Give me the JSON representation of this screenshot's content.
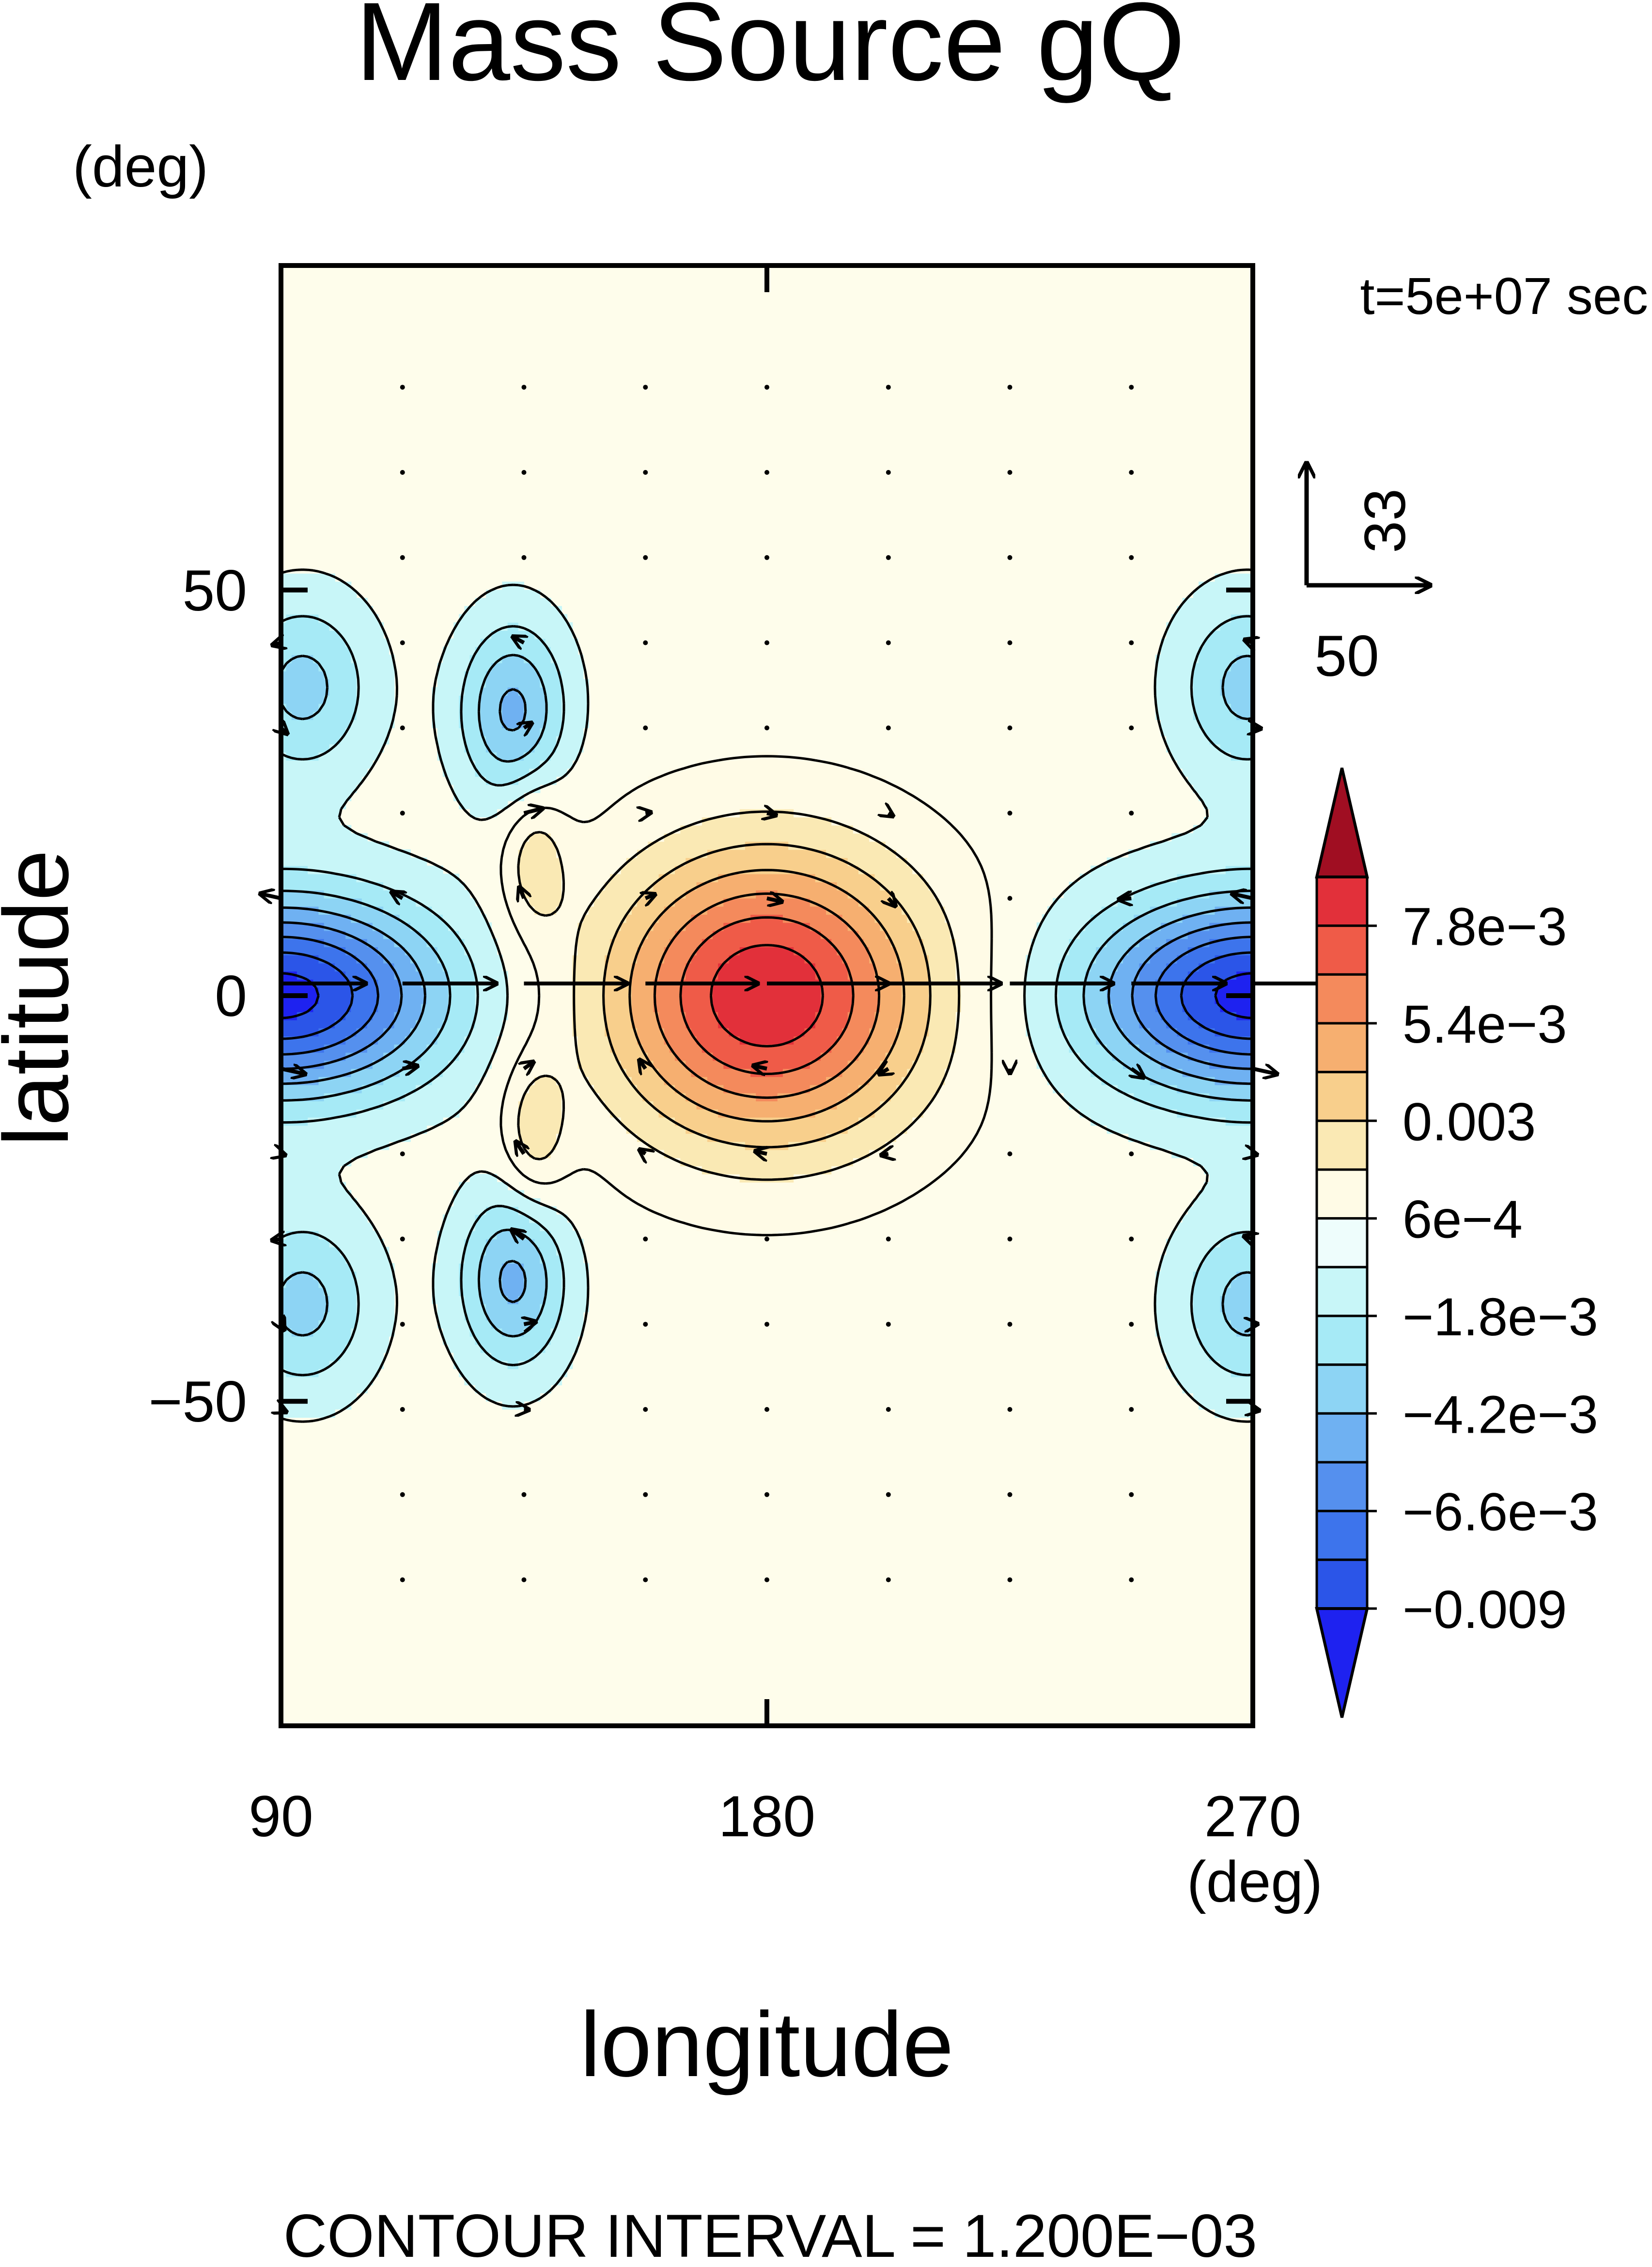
{
  "chart_data": {
    "type": "heatmap",
    "title": "Mass Source gQ",
    "time_label": "t=5e+07 sec",
    "xlabel": "longitude",
    "ylabel": "latitude",
    "x_unit": "(deg)",
    "y_unit": "(deg)",
    "xlim": [
      90,
      270
    ],
    "ylim": [
      -90,
      90
    ],
    "x_ticks": [
      90,
      180,
      270
    ],
    "x_tick_labels": [
      "90",
      "180",
      "270"
    ],
    "y_ticks": [
      50,
      0,
      -50
    ],
    "y_tick_labels": [
      "50",
      "0",
      "−50"
    ],
    "footer": "CONTOUR INTERVAL = 1.200E−03",
    "contour_interval": 0.0012,
    "vector_reference": {
      "u": 50,
      "v": 33,
      "u_label": "50",
      "v_label": "33"
    },
    "colorbar": {
      "levels": [
        -0.009,
        -0.0078,
        -0.0066,
        -0.0054,
        -0.0042,
        -0.003,
        -0.0018,
        -0.0006,
        0.0006,
        0.0018,
        0.003,
        0.0042,
        0.0054,
        0.0066,
        0.0078,
        0.009
      ],
      "colors": [
        "#1e22f0",
        "#2b55e8",
        "#3d74ec",
        "#5590ee",
        "#6fb1f2",
        "#8dd4f4",
        "#a6eaf6",
        "#c8f6f8",
        "#eefdfc",
        "#fffbe6",
        "#fae9b4",
        "#f8cf8c",
        "#f6af70",
        "#f48a5c",
        "#ef5b48",
        "#e2303a",
        "#a00e22"
      ],
      "labeled_levels": [
        0.0078,
        0.0054,
        0.003,
        0.0006,
        -0.0018,
        -0.0042,
        -0.0066,
        -0.009
      ],
      "labels": [
        "7.8e−3",
        "5.4e−3",
        "0.003",
        "6e−4",
        "−1.8e−3",
        "−4.2e−3",
        "−6.6e−3",
        "−0.009"
      ]
    },
    "features": [
      {
        "name": "equatorial-positive-maximum",
        "lon": 180,
        "lat": 0,
        "value": 0.0084
      },
      {
        "name": "western-negative-minimum",
        "lon": 90,
        "lat": 0,
        "value": -0.0084
      },
      {
        "name": "eastern-negative-minimum",
        "lon": 270,
        "lat": 0,
        "value": -0.0084
      },
      {
        "name": "north-cyclone",
        "lon": 133,
        "lat": 35,
        "value": -0.0036
      },
      {
        "name": "south-cyclone",
        "lon": 133,
        "lat": -35,
        "value": -0.0036
      },
      {
        "name": "north-west-negative",
        "lon": 95,
        "lat": 37,
        "value": -0.003
      },
      {
        "name": "south-west-negative",
        "lon": 95,
        "lat": -37,
        "value": -0.003
      },
      {
        "name": "north-east-negative",
        "lon": 268,
        "lat": 37,
        "value": -0.003
      },
      {
        "name": "south-east-negative",
        "lon": 268,
        "lat": -37,
        "value": -0.003
      },
      {
        "name": "north-small-positive",
        "lon": 137,
        "lat": 17,
        "value": 0.0024
      },
      {
        "name": "south-small-positive",
        "lon": 137,
        "lat": -17,
        "value": 0.0024
      }
    ]
  }
}
